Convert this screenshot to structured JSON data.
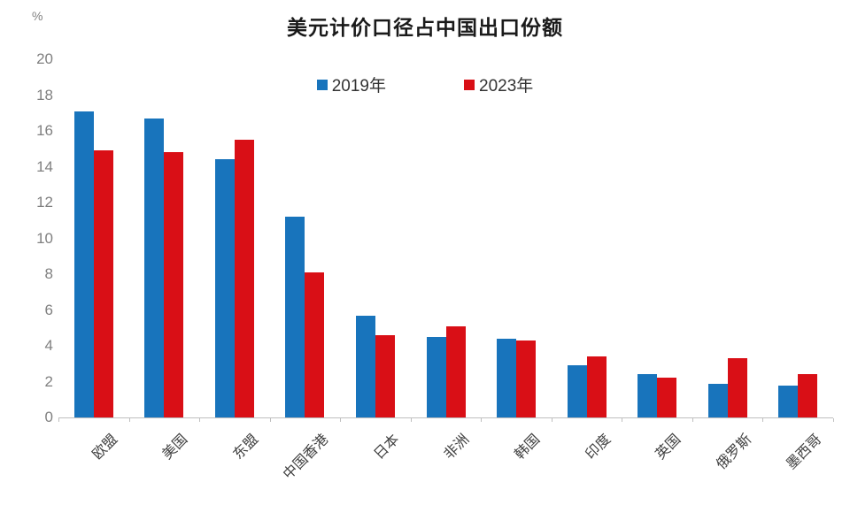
{
  "chart_data": {
    "type": "bar",
    "title": "美元计价口径占中国出口份额",
    "ylabel": "%",
    "xlabel": "",
    "ylim": [
      0,
      20
    ],
    "yticks": [
      0,
      2,
      4,
      6,
      8,
      10,
      12,
      14,
      16,
      18,
      20
    ],
    "grid": false,
    "legend_position": "top-center",
    "categories": [
      "欧盟",
      "美国",
      "东盟",
      "中国香港",
      "日本",
      "非洲",
      "韩国",
      "印度",
      "英国",
      "俄罗斯",
      "墨西哥"
    ],
    "series": [
      {
        "name": "2019年",
        "color": "#1874BC",
        "values": [
          17.1,
          16.7,
          14.4,
          11.2,
          5.7,
          4.5,
          4.4,
          2.9,
          2.4,
          1.9,
          1.8
        ]
      },
      {
        "name": "2023年",
        "color": "#D90F16",
        "values": [
          14.9,
          14.8,
          15.5,
          8.1,
          4.6,
          5.1,
          4.3,
          3.4,
          2.2,
          3.3,
          2.4
        ]
      }
    ],
    "axis_color": "#bfbfbf",
    "tick_label_color": "#808080",
    "category_label_color": "#404040"
  }
}
